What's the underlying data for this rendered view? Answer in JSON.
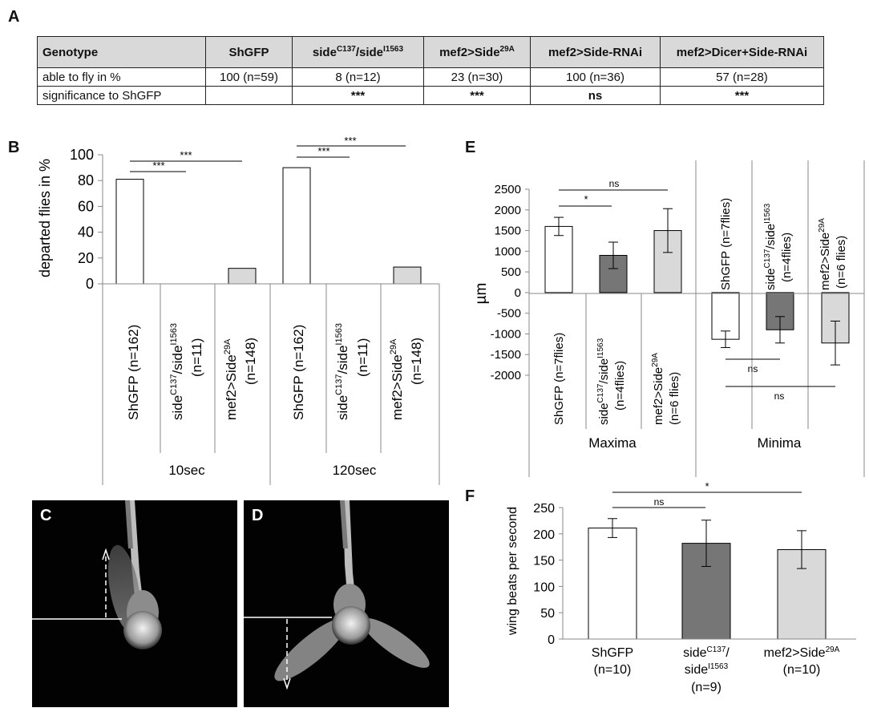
{
  "panelA": {
    "label": "A",
    "header": [
      "Genotype",
      "ShGFP",
      "side^C137/side^I1563",
      "mef2>Side^29A",
      "mef2>Side-RNAi",
      "mef2>Dicer+Side-RNAi"
    ],
    "row_fly": [
      "able to fly in %",
      "100 (n=59)",
      "8 (n=12)",
      "23 (n=30)",
      "100 (n=36)",
      "57 (n=28)"
    ],
    "row_sig": [
      "significance to ShGFP",
      "",
      "***",
      "***",
      "ns",
      "***"
    ]
  },
  "panelB": {
    "label": "B",
    "groups": [
      "10sec",
      "120sec"
    ],
    "cat_main": [
      "ShGFP (n=162)",
      "side",
      "mef2>Side",
      "ShGFP (n=162)",
      "side",
      "mef2>Side"
    ],
    "cat_sub": [
      "",
      "(n=11)",
      "(n=148)",
      "",
      "(n=11)",
      "(n=148)"
    ],
    "sig": [
      "***",
      "***",
      "***",
      "***"
    ]
  },
  "panelC": {
    "label": "C"
  },
  "panelD": {
    "label": "D"
  },
  "panelE": {
    "label": "E",
    "groups": [
      "Maxima",
      "Minima"
    ],
    "max_cats": [
      "ShGFP (n=7flies)",
      "side",
      "mef2>Side"
    ],
    "max_subs": [
      "",
      "(n=4flies)",
      "(n=6 flies)"
    ],
    "min_cats": [
      "ShGFP (n=7flies)",
      "side",
      "mef2>Side"
    ],
    "min_subs": [
      "",
      "(n=4flies)",
      "(n=6 flies)"
    ],
    "sig": [
      "*",
      "ns",
      "ns",
      "ns"
    ]
  },
  "panelF": {
    "label": "F",
    "cat_lines": [
      [
        "ShGFP",
        "(n=10)"
      ],
      [
        "side",
        "side",
        "(n=9)"
      ],
      [
        "mef2>Side",
        "(n=10)"
      ]
    ],
    "sig": [
      "ns",
      "*"
    ]
  },
  "chart_data": [
    {
      "type": "bar",
      "panel": "B",
      "ylabel": "departed flies in %",
      "ylim": [
        0,
        100
      ],
      "yticks": [
        0,
        20,
        40,
        60,
        80,
        100
      ],
      "categories": [
        "ShGFP (n=162)",
        "side^C137/side^I1563 (n=11)",
        "mef2>Side^29A (n=148)",
        "ShGFP (n=162)",
        "side^C137/side^I1563 (n=11)",
        "mef2>Side^29A (n=148)"
      ],
      "values": [
        81,
        0,
        12,
        90,
        0,
        13
      ],
      "colors": [
        "#ffffff",
        "#ffffff",
        "#d9d9d9",
        "#ffffff",
        "#ffffff",
        "#d9d9d9"
      ],
      "groups": [
        "10sec",
        "120sec"
      ]
    },
    {
      "type": "bar",
      "panel": "E",
      "ylabel": "µm",
      "ylim": [
        -2000,
        2500
      ],
      "yticks": [
        2500,
        2000,
        1500,
        1000,
        500,
        0,
        -500,
        -1000,
        -1500,
        -2000
      ],
      "categories": [
        "ShGFP (n=7flies)",
        "side^C137/side^I1563 (n=4flies)",
        "mef2>Side^29A (n=6 flies)",
        "ShGFP (n=7flies)",
        "side^C137/side^I1563 (n=4flies)",
        "mef2>Side^29A (n=6 flies)"
      ],
      "values": [
        1600,
        900,
        1500,
        -1130,
        -900,
        -1220
      ],
      "errors": [
        220,
        320,
        530,
        200,
        320,
        530
      ],
      "colors": [
        "#ffffff",
        "#767676",
        "#d9d9d9",
        "#ffffff",
        "#767676",
        "#d9d9d9"
      ],
      "groups": [
        "Maxima",
        "Minima"
      ]
    },
    {
      "type": "bar",
      "panel": "F",
      "ylabel": "wing beats per second",
      "ylim": [
        0,
        250
      ],
      "yticks": [
        0,
        50,
        100,
        150,
        200,
        250
      ],
      "categories": [
        "ShGFP (n=10)",
        "side^C137/side^I1563 (n=9)",
        "mef2>Side^29A (n=10)"
      ],
      "values": [
        211,
        182,
        170
      ],
      "errors": [
        18,
        44,
        36
      ],
      "colors": [
        "#ffffff",
        "#767676",
        "#d9d9d9"
      ]
    }
  ]
}
